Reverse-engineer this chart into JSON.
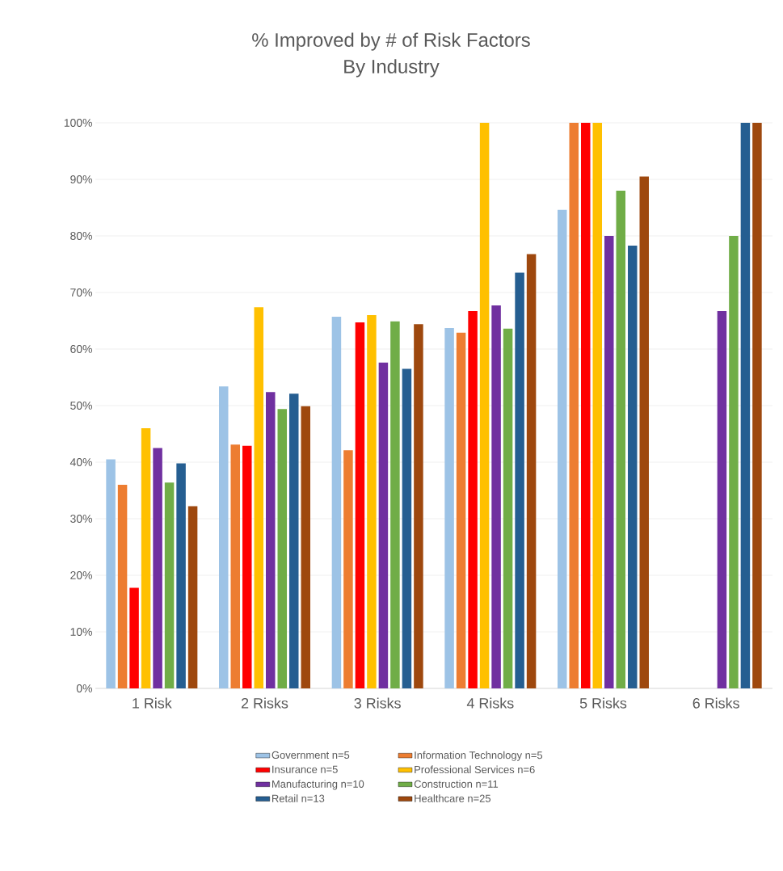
{
  "chart_data": {
    "type": "bar",
    "title": "% Improved by # of Risk Factors",
    "subtitle": "By Industry",
    "categories": [
      "1 Risk",
      "2 Risks",
      "3 Risks",
      "4 Risks",
      "5 Risks",
      "6 Risks"
    ],
    "series": [
      {
        "name": "Government n=5",
        "color": "#9dc3e6",
        "values": [
          40.5,
          53.4,
          65.7,
          63.7,
          84.6,
          null
        ]
      },
      {
        "name": "Information Technology n=5",
        "color": "#ed7d31",
        "values": [
          36,
          43.1,
          42.1,
          62.9,
          100,
          null
        ]
      },
      {
        "name": "Insurance n=5",
        "color": "#ff0000",
        "values": [
          17.8,
          42.9,
          64.7,
          66.7,
          100,
          null
        ]
      },
      {
        "name": "Professional Services n=6",
        "color": "#ffc000",
        "values": [
          46,
          67.4,
          66,
          100,
          100,
          null
        ]
      },
      {
        "name": "Manufacturing n=10",
        "color": "#7030a0",
        "values": [
          42.5,
          52.4,
          57.6,
          67.7,
          80,
          66.7
        ]
      },
      {
        "name": "Construction n=11",
        "color": "#70ad47",
        "values": [
          36.4,
          49.4,
          64.9,
          63.6,
          88,
          80
        ]
      },
      {
        "name": "Retail n=13",
        "color": "#255e91",
        "values": [
          39.8,
          52.1,
          56.5,
          73.5,
          78.3,
          100
        ]
      },
      {
        "name": "Healthcare n=25",
        "color": "#9e480e",
        "values": [
          32.2,
          49.9,
          64.4,
          76.8,
          90.5,
          100
        ]
      }
    ],
    "ylim": [
      0,
      100
    ],
    "yticks": [
      {
        "value": 0,
        "label": "0%"
      },
      {
        "value": 10,
        "label": "10%"
      },
      {
        "value": 20,
        "label": "20%"
      },
      {
        "value": 30,
        "label": "30%"
      },
      {
        "value": 40,
        "label": "40%"
      },
      {
        "value": 50,
        "label": "50%"
      },
      {
        "value": 60,
        "label": "60%"
      },
      {
        "value": 70,
        "label": "70%"
      },
      {
        "value": 80,
        "label": "80%"
      },
      {
        "value": 90,
        "label": "90%"
      },
      {
        "value": 100,
        "label": "100%"
      }
    ],
    "grid": "y",
    "legend": "bottom"
  }
}
